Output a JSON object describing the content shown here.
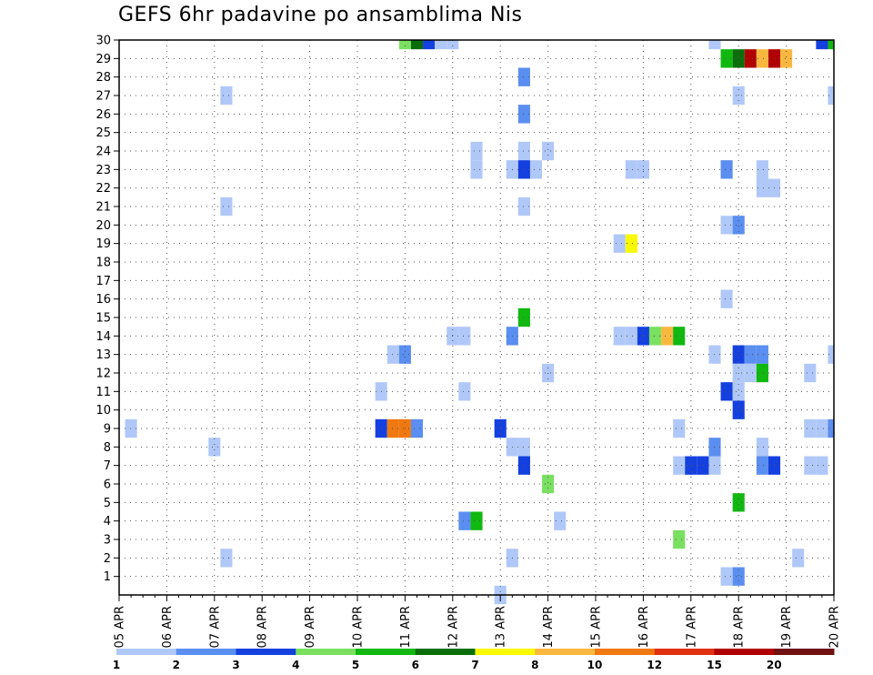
{
  "title": "GEFS 6hr padavine po ansamblima Nis",
  "chart_data": {
    "type": "heatmap",
    "title": "GEFS 6hr padavine po ansamblima Nis",
    "xlabel": "",
    "ylabel": "",
    "x_tick_labels": [
      "05 APR",
      "06 APR",
      "07 APR",
      "08 APR",
      "09 APR",
      "10 APR",
      "11 APR",
      "12 APR",
      "13 APR",
      "14 APR",
      "15 APR",
      "16 APR",
      "17 APR",
      "18 APR",
      "19 APR",
      "20 APR"
    ],
    "y_tick_labels": [
      "1",
      "2",
      "3",
      "4",
      "5",
      "6",
      "7",
      "8",
      "9",
      "10",
      "11",
      "12",
      "13",
      "14",
      "15",
      "16",
      "17",
      "18",
      "19",
      "20",
      "21",
      "22",
      "23",
      "24",
      "25",
      "26",
      "27",
      "28",
      "29",
      "30"
    ],
    "xlim_days": [
      0,
      15
    ],
    "ylim_members": [
      0,
      30
    ],
    "grid": true,
    "colorbar": {
      "labels": [
        "1",
        "2",
        "3",
        "4",
        "5",
        "6",
        "7",
        "8",
        "10",
        "12",
        "15",
        "20"
      ],
      "colors": [
        "#b0c8f8",
        "#5a8ef0",
        "#1440e0",
        "#7ae060",
        "#10b810",
        "#0a6e0a",
        "#f8f800",
        "#f8b840",
        "#f07810",
        "#e03010",
        "#b00000",
        "#701010"
      ]
    },
    "cells": [
      {
        "member": 30,
        "day": 6.0,
        "level": 4
      },
      {
        "member": 30,
        "day": 6.25,
        "level": 6
      },
      {
        "member": 30,
        "day": 6.5,
        "level": 3
      },
      {
        "member": 30,
        "day": 6.75,
        "level": 1
      },
      {
        "member": 30,
        "day": 7.0,
        "level": 1
      },
      {
        "member": 30,
        "day": 12.5,
        "level": 1
      },
      {
        "member": 30,
        "day": 14.75,
        "level": 3
      },
      {
        "member": 30,
        "day": 15.0,
        "level": 5
      },
      {
        "member": 29,
        "day": 12.75,
        "level": 5
      },
      {
        "member": 29,
        "day": 13.0,
        "level": 6
      },
      {
        "member": 29,
        "day": 13.25,
        "level": 11
      },
      {
        "member": 29,
        "day": 13.5,
        "level": 8
      },
      {
        "member": 29,
        "day": 13.75,
        "level": 11
      },
      {
        "member": 29,
        "day": 14.0,
        "level": 8
      },
      {
        "member": 28,
        "day": 8.5,
        "level": 2
      },
      {
        "member": 27,
        "day": 2.25,
        "level": 1
      },
      {
        "member": 27,
        "day": 13.0,
        "level": 1
      },
      {
        "member": 27,
        "day": 15.0,
        "level": 1
      },
      {
        "member": 26,
        "day": 8.5,
        "level": 2
      },
      {
        "member": 24,
        "day": 7.5,
        "level": 1
      },
      {
        "member": 24,
        "day": 8.5,
        "level": 1
      },
      {
        "member": 24,
        "day": 9.0,
        "level": 1
      },
      {
        "member": 23,
        "day": 7.5,
        "level": 1
      },
      {
        "member": 23,
        "day": 8.25,
        "level": 1
      },
      {
        "member": 23,
        "day": 8.5,
        "level": 3
      },
      {
        "member": 23,
        "day": 8.75,
        "level": 1
      },
      {
        "member": 23,
        "day": 10.75,
        "level": 1
      },
      {
        "member": 23,
        "day": 11.0,
        "level": 1
      },
      {
        "member": 23,
        "day": 12.75,
        "level": 2
      },
      {
        "member": 23,
        "day": 13.5,
        "level": 1
      },
      {
        "member": 22,
        "day": 13.5,
        "level": 1
      },
      {
        "member": 22,
        "day": 13.75,
        "level": 1
      },
      {
        "member": 21,
        "day": 2.25,
        "level": 1
      },
      {
        "member": 21,
        "day": 8.5,
        "level": 1
      },
      {
        "member": 20,
        "day": 12.75,
        "level": 1
      },
      {
        "member": 20,
        "day": 13.0,
        "level": 2
      },
      {
        "member": 19,
        "day": 10.5,
        "level": 1
      },
      {
        "member": 19,
        "day": 10.75,
        "level": 7
      },
      {
        "member": 16,
        "day": 12.75,
        "level": 1
      },
      {
        "member": 15,
        "day": 8.5,
        "level": 5
      },
      {
        "member": 14,
        "day": 7.0,
        "level": 1
      },
      {
        "member": 14,
        "day": 7.25,
        "level": 1
      },
      {
        "member": 14,
        "day": 8.25,
        "level": 2
      },
      {
        "member": 14,
        "day": 10.5,
        "level": 1
      },
      {
        "member": 14,
        "day": 10.75,
        "level": 1
      },
      {
        "member": 14,
        "day": 11.0,
        "level": 3
      },
      {
        "member": 14,
        "day": 11.25,
        "level": 4
      },
      {
        "member": 14,
        "day": 11.5,
        "level": 8
      },
      {
        "member": 14,
        "day": 11.75,
        "level": 5
      },
      {
        "member": 13,
        "day": 5.75,
        "level": 1
      },
      {
        "member": 13,
        "day": 6.0,
        "level": 2
      },
      {
        "member": 13,
        "day": 12.5,
        "level": 1
      },
      {
        "member": 13,
        "day": 13.0,
        "level": 3
      },
      {
        "member": 13,
        "day": 13.25,
        "level": 2
      },
      {
        "member": 13,
        "day": 13.5,
        "level": 2
      },
      {
        "member": 13,
        "day": 15.0,
        "level": 1
      },
      {
        "member": 12,
        "day": 9.0,
        "level": 1
      },
      {
        "member": 12,
        "day": 13.0,
        "level": 1
      },
      {
        "member": 12,
        "day": 13.25,
        "level": 1
      },
      {
        "member": 12,
        "day": 13.5,
        "level": 5
      },
      {
        "member": 12,
        "day": 14.5,
        "level": 1
      },
      {
        "member": 11,
        "day": 5.5,
        "level": 1
      },
      {
        "member": 11,
        "day": 7.25,
        "level": 1
      },
      {
        "member": 11,
        "day": 12.75,
        "level": 3
      },
      {
        "member": 11,
        "day": 13.0,
        "level": 1
      },
      {
        "member": 10,
        "day": 13.0,
        "level": 3
      },
      {
        "member": 9,
        "day": 0.25,
        "level": 1
      },
      {
        "member": 9,
        "day": 5.5,
        "level": 3
      },
      {
        "member": 9,
        "day": 5.75,
        "level": 9
      },
      {
        "member": 9,
        "day": 6.0,
        "level": 9
      },
      {
        "member": 9,
        "day": 6.25,
        "level": 2
      },
      {
        "member": 9,
        "day": 8.0,
        "level": 3
      },
      {
        "member": 9,
        "day": 11.75,
        "level": 1
      },
      {
        "member": 9,
        "day": 14.5,
        "level": 1
      },
      {
        "member": 9,
        "day": 14.75,
        "level": 1
      },
      {
        "member": 9,
        "day": 15.0,
        "level": 2
      },
      {
        "member": 8,
        "day": 2.0,
        "level": 1
      },
      {
        "member": 8,
        "day": 8.25,
        "level": 1
      },
      {
        "member": 8,
        "day": 8.5,
        "level": 1
      },
      {
        "member": 8,
        "day": 12.5,
        "level": 2
      },
      {
        "member": 8,
        "day": 13.5,
        "level": 1
      },
      {
        "member": 7,
        "day": 8.5,
        "level": 3
      },
      {
        "member": 7,
        "day": 11.75,
        "level": 1
      },
      {
        "member": 7,
        "day": 12.0,
        "level": 3
      },
      {
        "member": 7,
        "day": 12.25,
        "level": 3
      },
      {
        "member": 7,
        "day": 12.5,
        "level": 1
      },
      {
        "member": 7,
        "day": 13.5,
        "level": 2
      },
      {
        "member": 7,
        "day": 13.75,
        "level": 3
      },
      {
        "member": 7,
        "day": 14.5,
        "level": 1
      },
      {
        "member": 7,
        "day": 14.75,
        "level": 1
      },
      {
        "member": 6,
        "day": 9.0,
        "level": 4
      },
      {
        "member": 5,
        "day": 13.0,
        "level": 5
      },
      {
        "member": 4,
        "day": 7.25,
        "level": 2
      },
      {
        "member": 4,
        "day": 7.5,
        "level": 5
      },
      {
        "member": 4,
        "day": 9.25,
        "level": 1
      },
      {
        "member": 3,
        "day": 11.75,
        "level": 4
      },
      {
        "member": 2,
        "day": 2.25,
        "level": 1
      },
      {
        "member": 2,
        "day": 8.25,
        "level": 1
      },
      {
        "member": 2,
        "day": 14.25,
        "level": 1
      },
      {
        "member": 1,
        "day": 12.75,
        "level": 1
      },
      {
        "member": 1,
        "day": 13.0,
        "level": 2
      },
      {
        "member": 0,
        "day": 8.0,
        "level": 1
      }
    ]
  }
}
